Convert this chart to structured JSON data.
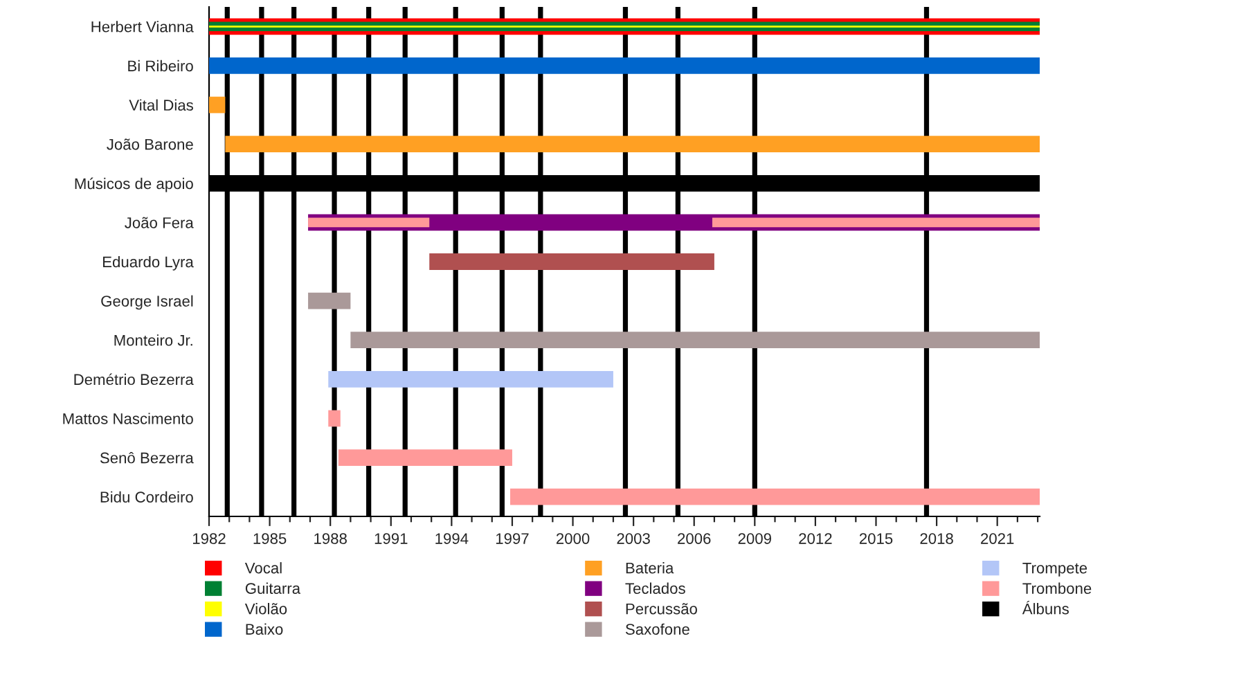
{
  "chart_data": {
    "type": "bar",
    "orientation": "horizontal",
    "categories": [
      "Herbert Vianna",
      "Bi Ribeiro",
      "Vital Dias",
      "João Barone",
      "Músicos de apoio",
      "João Fera",
      "Eduardo Lyra",
      "George Israel",
      "Monteiro Jr.",
      "Demétrio Bezerra",
      "Mattos Nascimento",
      "Senô Bezerra",
      "Bidu Cordeiro"
    ],
    "series": [
      {
        "name": "Vocal",
        "color": "#ff0000",
        "base": [
          1982,
          null,
          null,
          null,
          null,
          null,
          null,
          null,
          null,
          null,
          null,
          null,
          null
        ],
        "values": [
          41.1,
          null,
          null,
          null,
          null,
          null,
          null,
          null,
          null,
          null,
          null,
          null,
          null
        ]
      },
      {
        "name": "Guitarra",
        "color": "#008033",
        "base": [
          1982,
          null,
          null,
          null,
          null,
          null,
          null,
          null,
          null,
          null,
          null,
          null,
          null
        ],
        "values": [
          41.1,
          null,
          null,
          null,
          null,
          null,
          null,
          null,
          null,
          null,
          null,
          null,
          null
        ]
      },
      {
        "name": "Violão",
        "color": "#ffff00",
        "base": [
          1982,
          null,
          null,
          null,
          null,
          null,
          null,
          null,
          null,
          null,
          null,
          null,
          null
        ],
        "values": [
          41.1,
          null,
          null,
          null,
          null,
          null,
          null,
          null,
          null,
          null,
          null,
          null,
          null
        ]
      },
      {
        "name": "Baixo",
        "color": "#0066cc",
        "base": [
          null,
          1982,
          null,
          null,
          null,
          null,
          null,
          null,
          null,
          null,
          null,
          null,
          null
        ],
        "values": [
          null,
          41.1,
          null,
          null,
          null,
          null,
          null,
          null,
          null,
          null,
          null,
          null,
          null
        ]
      },
      {
        "name": "Bateria",
        "color": "#ffa023",
        "base": [
          null,
          null,
          1982,
          1982.8,
          null,
          null,
          null,
          null,
          null,
          null,
          null,
          null,
          null
        ],
        "values": [
          null,
          null,
          0.8,
          40.3,
          null,
          null,
          null,
          null,
          null,
          null,
          null,
          null,
          null
        ]
      },
      {
        "name": "Teclados",
        "color": "#800080",
        "base": [
          null,
          null,
          null,
          null,
          null,
          1986.9,
          null,
          null,
          null,
          null,
          null,
          null,
          null
        ],
        "values": [
          null,
          null,
          null,
          null,
          null,
          36.2,
          null,
          null,
          null,
          null,
          null,
          null,
          null
        ]
      },
      {
        "name": "Percussão",
        "color": "#b05050",
        "base": [
          null,
          null,
          null,
          null,
          null,
          null,
          1992.9,
          null,
          null,
          null,
          null,
          null,
          null
        ],
        "values": [
          null,
          null,
          null,
          null,
          null,
          null,
          14.1,
          null,
          null,
          null,
          null,
          null,
          null
        ]
      },
      {
        "name": "Saxofone",
        "color": "#aa9999",
        "base": [
          null,
          null,
          null,
          null,
          null,
          null,
          null,
          1986.9,
          1989.0,
          null,
          null,
          null,
          null
        ],
        "values": [
          null,
          null,
          null,
          null,
          null,
          null,
          null,
          2.1,
          34.1,
          null,
          null,
          null,
          null
        ]
      },
      {
        "name": "Trompete",
        "color": "#b3c6f7",
        "base": [
          null,
          null,
          null,
          null,
          null,
          null,
          null,
          null,
          null,
          1987.9,
          null,
          null,
          null
        ],
        "values": [
          null,
          null,
          null,
          null,
          null,
          null,
          null,
          null,
          null,
          14.1,
          null,
          null,
          null
        ]
      },
      {
        "name": "Trombone",
        "color": "#ff9999",
        "base": [
          null,
          null,
          null,
          null,
          null,
          1986.9,
          null,
          null,
          null,
          null,
          1987.9,
          1988.4,
          1996.9
        ],
        "values": [
          null,
          null,
          null,
          null,
          null,
          6.0,
          null,
          null,
          null,
          null,
          0.6,
          8.6,
          26.2
        ]
      },
      {
        "color": "#ff9999",
        "base": [
          null,
          null,
          null,
          null,
          null,
          2006.9,
          null,
          null,
          null,
          null,
          null,
          null,
          null
        ],
        "values": [
          null,
          null,
          null,
          null,
          null,
          16.2,
          null,
          null,
          null,
          null,
          null,
          null,
          null
        ]
      },
      {
        "color": "#000000",
        "base": [
          null,
          null,
          null,
          null,
          1982,
          null,
          null,
          null,
          null,
          null,
          null,
          null,
          null
        ],
        "values": [
          null,
          null,
          null,
          null,
          41.1,
          null,
          null,
          null,
          null,
          null,
          null,
          null,
          null
        ]
      }
    ],
    "ref_lines": [
      {
        "axis": "x",
        "value": 1982.9,
        "color": "#000000",
        "label": "Álbuns"
      },
      {
        "axis": "x",
        "value": 1984.6,
        "color": "#000000"
      },
      {
        "axis": "x",
        "value": 1986.2,
        "color": "#000000"
      },
      {
        "axis": "x",
        "value": 1988.2,
        "color": "#000000"
      },
      {
        "axis": "x",
        "value": 1989.9,
        "color": "#000000"
      },
      {
        "axis": "x",
        "value": 1991.7,
        "color": "#000000"
      },
      {
        "axis": "x",
        "value": 1994.2,
        "color": "#000000"
      },
      {
        "axis": "x",
        "value": 1996.5,
        "color": "#000000"
      },
      {
        "axis": "x",
        "value": 1998.4,
        "color": "#000000"
      },
      {
        "axis": "x",
        "value": 2002.6,
        "color": "#000000"
      },
      {
        "axis": "x",
        "value": 2005.2,
        "color": "#000000"
      },
      {
        "axis": "x",
        "value": 2009.0,
        "color": "#000000"
      },
      {
        "axis": "x",
        "value": 2017.5,
        "color": "#000000"
      }
    ],
    "xlim": [
      1982,
      2023.1
    ],
    "xticks": [
      1982,
      1985,
      1988,
      1991,
      1994,
      1997,
      2000,
      2003,
      2006,
      2009,
      2012,
      2015,
      2018,
      2021
    ],
    "grid": false,
    "legend": "bottom"
  }
}
